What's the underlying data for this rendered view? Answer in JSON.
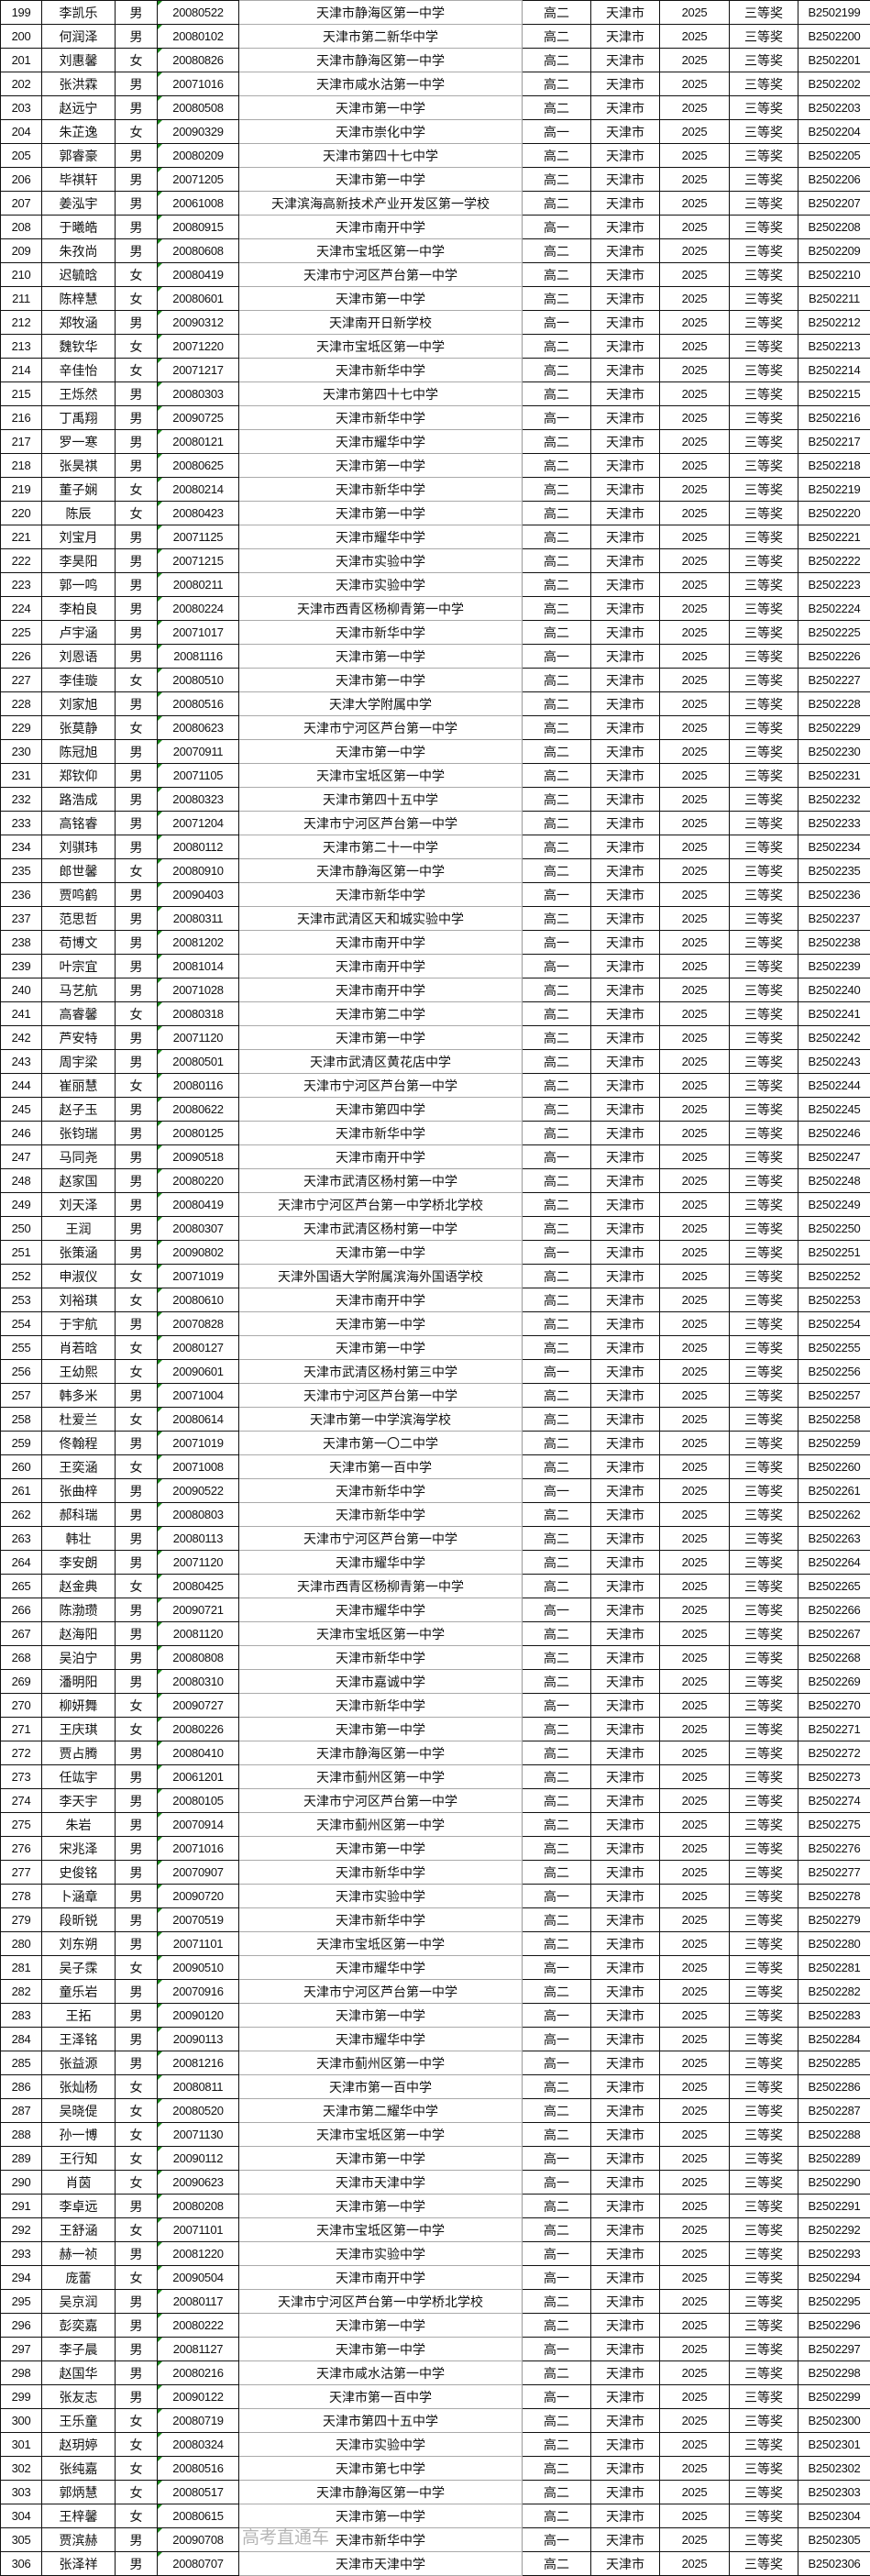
{
  "table": {
    "columns": [
      "num",
      "name",
      "gender",
      "birth",
      "school",
      "grade",
      "city",
      "year",
      "award",
      "id"
    ],
    "rows": [
      [
        "199",
        "李凯乐",
        "男",
        "20080522",
        "天津市静海区第一中学",
        "高二",
        "天津市",
        "2025",
        "三等奖",
        "B2502199"
      ],
      [
        "200",
        "何润泽",
        "男",
        "20080102",
        "天津市第二新华中学",
        "高二",
        "天津市",
        "2025",
        "三等奖",
        "B2502200"
      ],
      [
        "201",
        "刘惠馨",
        "女",
        "20080826",
        "天津市静海区第一中学",
        "高二",
        "天津市",
        "2025",
        "三等奖",
        "B2502201"
      ],
      [
        "202",
        "张洪霖",
        "男",
        "20071016",
        "天津市咸水沽第一中学",
        "高二",
        "天津市",
        "2025",
        "三等奖",
        "B2502202"
      ],
      [
        "203",
        "赵远宁",
        "男",
        "20080508",
        "天津市第一中学",
        "高二",
        "天津市",
        "2025",
        "三等奖",
        "B2502203"
      ],
      [
        "204",
        "朱芷逸",
        "女",
        "20090329",
        "天津市崇化中学",
        "高一",
        "天津市",
        "2025",
        "三等奖",
        "B2502204"
      ],
      [
        "205",
        "郭睿豪",
        "男",
        "20080209",
        "天津市第四十七中学",
        "高二",
        "天津市",
        "2025",
        "三等奖",
        "B2502205"
      ],
      [
        "206",
        "毕祺轩",
        "男",
        "20071205",
        "天津市第一中学",
        "高二",
        "天津市",
        "2025",
        "三等奖",
        "B2502206"
      ],
      [
        "207",
        "姜泓宇",
        "男",
        "20061008",
        "天津滨海高新技术产业开发区第一学校",
        "高二",
        "天津市",
        "2025",
        "三等奖",
        "B2502207"
      ],
      [
        "208",
        "于曦皓",
        "男",
        "20080915",
        "天津市南开中学",
        "高一",
        "天津市",
        "2025",
        "三等奖",
        "B2502208"
      ],
      [
        "209",
        "朱孜尚",
        "男",
        "20080608",
        "天津市宝坻区第一中学",
        "高二",
        "天津市",
        "2025",
        "三等奖",
        "B2502209"
      ],
      [
        "210",
        "迟毓晗",
        "女",
        "20080419",
        "天津市宁河区芦台第一中学",
        "高二",
        "天津市",
        "2025",
        "三等奖",
        "B2502210"
      ],
      [
        "211",
        "陈梓慧",
        "女",
        "20080601",
        "天津市第一中学",
        "高二",
        "天津市",
        "2025",
        "三等奖",
        "B2502211"
      ],
      [
        "212",
        "郑牧涵",
        "男",
        "20090312",
        "天津南开日新学校",
        "高一",
        "天津市",
        "2025",
        "三等奖",
        "B2502212"
      ],
      [
        "213",
        "魏钦华",
        "女",
        "20071220",
        "天津市宝坻区第一中学",
        "高二",
        "天津市",
        "2025",
        "三等奖",
        "B2502213"
      ],
      [
        "214",
        "辛佳怡",
        "女",
        "20071217",
        "天津市新华中学",
        "高二",
        "天津市",
        "2025",
        "三等奖",
        "B2502214"
      ],
      [
        "215",
        "王烁然",
        "男",
        "20080303",
        "天津市第四十七中学",
        "高二",
        "天津市",
        "2025",
        "三等奖",
        "B2502215"
      ],
      [
        "216",
        "丁禹翔",
        "男",
        "20090725",
        "天津市新华中学",
        "高一",
        "天津市",
        "2025",
        "三等奖",
        "B2502216"
      ],
      [
        "217",
        "罗一寒",
        "男",
        "20080121",
        "天津市耀华中学",
        "高二",
        "天津市",
        "2025",
        "三等奖",
        "B2502217"
      ],
      [
        "218",
        "张昊祺",
        "男",
        "20080625",
        "天津市第一中学",
        "高二",
        "天津市",
        "2025",
        "三等奖",
        "B2502218"
      ],
      [
        "219",
        "董子娴",
        "女",
        "20080214",
        "天津市新华中学",
        "高二",
        "天津市",
        "2025",
        "三等奖",
        "B2502219"
      ],
      [
        "220",
        "陈辰",
        "女",
        "20080423",
        "天津市第一中学",
        "高二",
        "天津市",
        "2025",
        "三等奖",
        "B2502220"
      ],
      [
        "221",
        "刘宝月",
        "男",
        "20071125",
        "天津市耀华中学",
        "高二",
        "天津市",
        "2025",
        "三等奖",
        "B2502221"
      ],
      [
        "222",
        "李昊阳",
        "男",
        "20071215",
        "天津市实验中学",
        "高二",
        "天津市",
        "2025",
        "三等奖",
        "B2502222"
      ],
      [
        "223",
        "郭一鸣",
        "男",
        "20080211",
        "天津市实验中学",
        "高二",
        "天津市",
        "2025",
        "三等奖",
        "B2502223"
      ],
      [
        "224",
        "李柏良",
        "男",
        "20080224",
        "天津市西青区杨柳青第一中学",
        "高二",
        "天津市",
        "2025",
        "三等奖",
        "B2502224"
      ],
      [
        "225",
        "卢宇涵",
        "男",
        "20071017",
        "天津市新华中学",
        "高二",
        "天津市",
        "2025",
        "三等奖",
        "B2502225"
      ],
      [
        "226",
        "刘恩语",
        "男",
        "20081116",
        "天津市第一中学",
        "高一",
        "天津市",
        "2025",
        "三等奖",
        "B2502226"
      ],
      [
        "227",
        "李佳璇",
        "女",
        "20080510",
        "天津市第一中学",
        "高二",
        "天津市",
        "2025",
        "三等奖",
        "B2502227"
      ],
      [
        "228",
        "刘家旭",
        "男",
        "20080516",
        "天津大学附属中学",
        "高二",
        "天津市",
        "2025",
        "三等奖",
        "B2502228"
      ],
      [
        "229",
        "张莫静",
        "女",
        "20080623",
        "天津市宁河区芦台第一中学",
        "高二",
        "天津市",
        "2025",
        "三等奖",
        "B2502229"
      ],
      [
        "230",
        "陈冠旭",
        "男",
        "20070911",
        "天津市第一中学",
        "高二",
        "天津市",
        "2025",
        "三等奖",
        "B2502230"
      ],
      [
        "231",
        "郑钦仰",
        "男",
        "20071105",
        "天津市宝坻区第一中学",
        "高二",
        "天津市",
        "2025",
        "三等奖",
        "B2502231"
      ],
      [
        "232",
        "路浩成",
        "男",
        "20080323",
        "天津市第四十五中学",
        "高二",
        "天津市",
        "2025",
        "三等奖",
        "B2502232"
      ],
      [
        "233",
        "高铭睿",
        "男",
        "20071204",
        "天津市宁河区芦台第一中学",
        "高二",
        "天津市",
        "2025",
        "三等奖",
        "B2502233"
      ],
      [
        "234",
        "刘骐玮",
        "男",
        "20080112",
        "天津市第二十一中学",
        "高二",
        "天津市",
        "2025",
        "三等奖",
        "B2502234"
      ],
      [
        "235",
        "郎世馨",
        "女",
        "20080910",
        "天津市静海区第一中学",
        "高二",
        "天津市",
        "2025",
        "三等奖",
        "B2502235"
      ],
      [
        "236",
        "贾鸣鹤",
        "男",
        "20090403",
        "天津市新华中学",
        "高一",
        "天津市",
        "2025",
        "三等奖",
        "B2502236"
      ],
      [
        "237",
        "范思哲",
        "男",
        "20080311",
        "天津市武清区天和城实验中学",
        "高二",
        "天津市",
        "2025",
        "三等奖",
        "B2502237"
      ],
      [
        "238",
        "苟博文",
        "男",
        "20081202",
        "天津市南开中学",
        "高一",
        "天津市",
        "2025",
        "三等奖",
        "B2502238"
      ],
      [
        "239",
        "叶宗宜",
        "男",
        "20081014",
        "天津市南开中学",
        "高一",
        "天津市",
        "2025",
        "三等奖",
        "B2502239"
      ],
      [
        "240",
        "马艺航",
        "男",
        "20071028",
        "天津市南开中学",
        "高二",
        "天津市",
        "2025",
        "三等奖",
        "B2502240"
      ],
      [
        "241",
        "高睿馨",
        "女",
        "20080318",
        "天津市第二中学",
        "高二",
        "天津市",
        "2025",
        "三等奖",
        "B2502241"
      ],
      [
        "242",
        "芦安特",
        "男",
        "20071120",
        "天津市第一中学",
        "高二",
        "天津市",
        "2025",
        "三等奖",
        "B2502242"
      ],
      [
        "243",
        "周宇梁",
        "男",
        "20080501",
        "天津市武清区黄花店中学",
        "高二",
        "天津市",
        "2025",
        "三等奖",
        "B2502243"
      ],
      [
        "244",
        "崔丽慧",
        "女",
        "20080116",
        "天津市宁河区芦台第一中学",
        "高二",
        "天津市",
        "2025",
        "三等奖",
        "B2502244"
      ],
      [
        "245",
        "赵子玉",
        "男",
        "20080622",
        "天津市第四中学",
        "高二",
        "天津市",
        "2025",
        "三等奖",
        "B2502245"
      ],
      [
        "246",
        "张钧瑞",
        "男",
        "20080125",
        "天津市新华中学",
        "高二",
        "天津市",
        "2025",
        "三等奖",
        "B2502246"
      ],
      [
        "247",
        "马同尧",
        "男",
        "20090518",
        "天津市南开中学",
        "高一",
        "天津市",
        "2025",
        "三等奖",
        "B2502247"
      ],
      [
        "248",
        "赵家国",
        "男",
        "20080220",
        "天津市武清区杨村第一中学",
        "高二",
        "天津市",
        "2025",
        "三等奖",
        "B2502248"
      ],
      [
        "249",
        "刘天泽",
        "男",
        "20080419",
        "天津市宁河区芦台第一中学桥北学校",
        "高二",
        "天津市",
        "2025",
        "三等奖",
        "B2502249"
      ],
      [
        "250",
        "王润",
        "男",
        "20080307",
        "天津市武清区杨村第一中学",
        "高二",
        "天津市",
        "2025",
        "三等奖",
        "B2502250"
      ],
      [
        "251",
        "张策涵",
        "男",
        "20090802",
        "天津市第一中学",
        "高一",
        "天津市",
        "2025",
        "三等奖",
        "B2502251"
      ],
      [
        "252",
        "申淑仪",
        "女",
        "20071019",
        "天津外国语大学附属滨海外国语学校",
        "高二",
        "天津市",
        "2025",
        "三等奖",
        "B2502252"
      ],
      [
        "253",
        "刘裕琪",
        "女",
        "20080610",
        "天津市南开中学",
        "高二",
        "天津市",
        "2025",
        "三等奖",
        "B2502253"
      ],
      [
        "254",
        "于宇航",
        "男",
        "20070828",
        "天津市第一中学",
        "高二",
        "天津市",
        "2025",
        "三等奖",
        "B2502254"
      ],
      [
        "255",
        "肖若晗",
        "女",
        "20080127",
        "天津市第一中学",
        "高二",
        "天津市",
        "2025",
        "三等奖",
        "B2502255"
      ],
      [
        "256",
        "王幼熙",
        "女",
        "20090601",
        "天津市武清区杨村第三中学",
        "高一",
        "天津市",
        "2025",
        "三等奖",
        "B2502256"
      ],
      [
        "257",
        "韩多米",
        "男",
        "20071004",
        "天津市宁河区芦台第一中学",
        "高二",
        "天津市",
        "2025",
        "三等奖",
        "B2502257"
      ],
      [
        "258",
        "杜爱兰",
        "女",
        "20080614",
        "天津市第一中学滨海学校",
        "高二",
        "天津市",
        "2025",
        "三等奖",
        "B2502258"
      ],
      [
        "259",
        "佟翰程",
        "男",
        "20071019",
        "天津市第一〇二中学",
        "高二",
        "天津市",
        "2025",
        "三等奖",
        "B2502259"
      ],
      [
        "260",
        "王奕涵",
        "女",
        "20071008",
        "天津市第一百中学",
        "高二",
        "天津市",
        "2025",
        "三等奖",
        "B2502260"
      ],
      [
        "261",
        "张曲梓",
        "男",
        "20090522",
        "天津市新华中学",
        "高一",
        "天津市",
        "2025",
        "三等奖",
        "B2502261"
      ],
      [
        "262",
        "郝科瑞",
        "男",
        "20080803",
        "天津市新华中学",
        "高二",
        "天津市",
        "2025",
        "三等奖",
        "B2502262"
      ],
      [
        "263",
        "韩壮",
        "男",
        "20080113",
        "天津市宁河区芦台第一中学",
        "高二",
        "天津市",
        "2025",
        "三等奖",
        "B2502263"
      ],
      [
        "264",
        "李安朗",
        "男",
        "20071120",
        "天津市耀华中学",
        "高二",
        "天津市",
        "2025",
        "三等奖",
        "B2502264"
      ],
      [
        "265",
        "赵金典",
        "女",
        "20080425",
        "天津市西青区杨柳青第一中学",
        "高二",
        "天津市",
        "2025",
        "三等奖",
        "B2502265"
      ],
      [
        "266",
        "陈渤瓒",
        "男",
        "20090721",
        "天津市耀华中学",
        "高一",
        "天津市",
        "2025",
        "三等奖",
        "B2502266"
      ],
      [
        "267",
        "赵海阳",
        "男",
        "20081120",
        "天津市宝坻区第一中学",
        "高二",
        "天津市",
        "2025",
        "三等奖",
        "B2502267"
      ],
      [
        "268",
        "吴泊宁",
        "男",
        "20080808",
        "天津市新华中学",
        "高二",
        "天津市",
        "2025",
        "三等奖",
        "B2502268"
      ],
      [
        "269",
        "潘明阳",
        "男",
        "20080310",
        "天津市嘉诚中学",
        "高二",
        "天津市",
        "2025",
        "三等奖",
        "B2502269"
      ],
      [
        "270",
        "柳妍舞",
        "女",
        "20090727",
        "天津市新华中学",
        "高一",
        "天津市",
        "2025",
        "三等奖",
        "B2502270"
      ],
      [
        "271",
        "王庆琪",
        "女",
        "20080226",
        "天津市第一中学",
        "高二",
        "天津市",
        "2025",
        "三等奖",
        "B2502271"
      ],
      [
        "272",
        "贾占腾",
        "男",
        "20080410",
        "天津市静海区第一中学",
        "高二",
        "天津市",
        "2025",
        "三等奖",
        "B2502272"
      ],
      [
        "273",
        "任竑宇",
        "男",
        "20061201",
        "天津市蓟州区第一中学",
        "高二",
        "天津市",
        "2025",
        "三等奖",
        "B2502273"
      ],
      [
        "274",
        "李天宇",
        "男",
        "20080105",
        "天津市宁河区芦台第一中学",
        "高二",
        "天津市",
        "2025",
        "三等奖",
        "B2502274"
      ],
      [
        "275",
        "朱岩",
        "男",
        "20070914",
        "天津市蓟州区第一中学",
        "高二",
        "天津市",
        "2025",
        "三等奖",
        "B2502275"
      ],
      [
        "276",
        "宋兆泽",
        "男",
        "20071016",
        "天津市第一中学",
        "高二",
        "天津市",
        "2025",
        "三等奖",
        "B2502276"
      ],
      [
        "277",
        "史俊铭",
        "男",
        "20070907",
        "天津市新华中学",
        "高二",
        "天津市",
        "2025",
        "三等奖",
        "B2502277"
      ],
      [
        "278",
        "卜涵章",
        "男",
        "20090720",
        "天津市实验中学",
        "高一",
        "天津市",
        "2025",
        "三等奖",
        "B2502278"
      ],
      [
        "279",
        "段昕锐",
        "男",
        "20070519",
        "天津市新华中学",
        "高二",
        "天津市",
        "2025",
        "三等奖",
        "B2502279"
      ],
      [
        "280",
        "刘东朔",
        "男",
        "20071101",
        "天津市宝坻区第一中学",
        "高二",
        "天津市",
        "2025",
        "三等奖",
        "B2502280"
      ],
      [
        "281",
        "吴子霂",
        "女",
        "20090510",
        "天津市耀华中学",
        "高一",
        "天津市",
        "2025",
        "三等奖",
        "B2502281"
      ],
      [
        "282",
        "童乐岩",
        "男",
        "20070916",
        "天津市宁河区芦台第一中学",
        "高二",
        "天津市",
        "2025",
        "三等奖",
        "B2502282"
      ],
      [
        "283",
        "王拓",
        "男",
        "20090120",
        "天津市第一中学",
        "高一",
        "天津市",
        "2025",
        "三等奖",
        "B2502283"
      ],
      [
        "284",
        "王泽铭",
        "男",
        "20090113",
        "天津市耀华中学",
        "高一",
        "天津市",
        "2025",
        "三等奖",
        "B2502284"
      ],
      [
        "285",
        "张益源",
        "男",
        "20081216",
        "天津市蓟州区第一中学",
        "高一",
        "天津市",
        "2025",
        "三等奖",
        "B2502285"
      ],
      [
        "286",
        "张灿杨",
        "女",
        "20080811",
        "天津市第一百中学",
        "高二",
        "天津市",
        "2025",
        "三等奖",
        "B2502286"
      ],
      [
        "287",
        "吴晓偍",
        "女",
        "20080520",
        "天津市第二耀华中学",
        "高二",
        "天津市",
        "2025",
        "三等奖",
        "B2502287"
      ],
      [
        "288",
        "孙一博",
        "女",
        "20071130",
        "天津市宝坻区第一中学",
        "高二",
        "天津市",
        "2025",
        "三等奖",
        "B2502288"
      ],
      [
        "289",
        "王行知",
        "女",
        "20090112",
        "天津市第一中学",
        "高一",
        "天津市",
        "2025",
        "三等奖",
        "B2502289"
      ],
      [
        "290",
        "肖茵",
        "女",
        "20090623",
        "天津市天津中学",
        "高一",
        "天津市",
        "2025",
        "三等奖",
        "B2502290"
      ],
      [
        "291",
        "李卓远",
        "男",
        "20080208",
        "天津市第一中学",
        "高二",
        "天津市",
        "2025",
        "三等奖",
        "B2502291"
      ],
      [
        "292",
        "王舒涵",
        "女",
        "20071101",
        "天津市宝坻区第一中学",
        "高二",
        "天津市",
        "2025",
        "三等奖",
        "B2502292"
      ],
      [
        "293",
        "赫一祯",
        "男",
        "20081220",
        "天津市实验中学",
        "高一",
        "天津市",
        "2025",
        "三等奖",
        "B2502293"
      ],
      [
        "294",
        "庞蕾",
        "女",
        "20090504",
        "天津市南开中学",
        "高一",
        "天津市",
        "2025",
        "三等奖",
        "B2502294"
      ],
      [
        "295",
        "吴京润",
        "男",
        "20080117",
        "天津市宁河区芦台第一中学桥北学校",
        "高二",
        "天津市",
        "2025",
        "三等奖",
        "B2502295"
      ],
      [
        "296",
        "彭奕嘉",
        "男",
        "20080222",
        "天津市第一中学",
        "高二",
        "天津市",
        "2025",
        "三等奖",
        "B2502296"
      ],
      [
        "297",
        "李子晨",
        "男",
        "20081127",
        "天津市第一中学",
        "高一",
        "天津市",
        "2025",
        "三等奖",
        "B2502297"
      ],
      [
        "298",
        "赵国华",
        "男",
        "20080216",
        "天津市咸水沽第一中学",
        "高二",
        "天津市",
        "2025",
        "三等奖",
        "B2502298"
      ],
      [
        "299",
        "张友志",
        "男",
        "20090122",
        "天津市第一百中学",
        "高一",
        "天津市",
        "2025",
        "三等奖",
        "B2502299"
      ],
      [
        "300",
        "王乐童",
        "女",
        "20080719",
        "天津市第四十五中学",
        "高二",
        "天津市",
        "2025",
        "三等奖",
        "B2502300"
      ],
      [
        "301",
        "赵玥婷",
        "女",
        "20080324",
        "天津市实验中学",
        "高二",
        "天津市",
        "2025",
        "三等奖",
        "B2502301"
      ],
      [
        "302",
        "张纯嘉",
        "女",
        "20080516",
        "天津市第七中学",
        "高二",
        "天津市",
        "2025",
        "三等奖",
        "B2502302"
      ],
      [
        "303",
        "郭炳慧",
        "女",
        "20080517",
        "天津市静海区第一中学",
        "高二",
        "天津市",
        "2025",
        "三等奖",
        "B2502303"
      ],
      [
        "304",
        "王梓馨",
        "女",
        "20080615",
        "天津市第一中学",
        "高二",
        "天津市",
        "2025",
        "三等奖",
        "B2502304"
      ],
      [
        "305",
        "贾滨赫",
        "男",
        "20090708",
        "天津市新华中学",
        "高一",
        "天津市",
        "2025",
        "三等奖",
        "B2502305"
      ],
      [
        "306",
        "张泽祥",
        "男",
        "20080707",
        "天津市天津中学",
        "高二",
        "天津市",
        "2025",
        "三等奖",
        "B2502306"
      ]
    ]
  },
  "watermark": "高考直通车",
  "colors": {
    "border": "#111111",
    "text_indicator": "#1a8a1a"
  }
}
